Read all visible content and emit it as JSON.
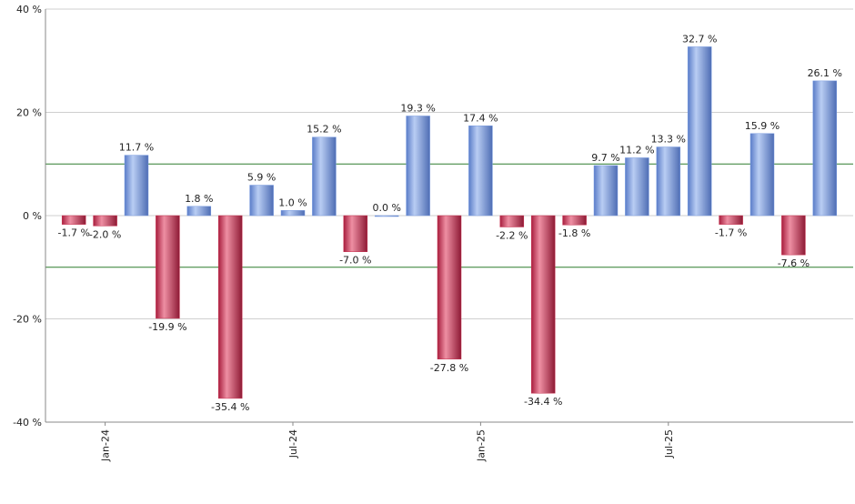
{
  "chart_data": {
    "type": "bar",
    "categories": [
      null,
      "Jan-24",
      null,
      null,
      null,
      null,
      null,
      "Jul-24",
      null,
      null,
      null,
      null,
      null,
      "Jan-25",
      null,
      null,
      null,
      null,
      null,
      "Jul-25",
      null,
      null,
      null,
      null,
      null
    ],
    "values": [
      -1.7,
      -2.0,
      11.7,
      -19.9,
      1.8,
      -35.4,
      5.9,
      1.0,
      15.2,
      -7.0,
      0.0,
      19.3,
      -27.8,
      17.4,
      -2.2,
      -34.4,
      -1.8,
      9.7,
      11.2,
      13.3,
      32.7,
      -1.7,
      15.9,
      -7.6,
      26.1
    ],
    "value_labels": [
      "-1.7 %",
      "-2.0 %",
      "11.7 %",
      "-19.9 %",
      "1.8 %",
      "-35.4 %",
      "5.9 %",
      "1.0 %",
      "15.2 %",
      "-7.0 %",
      "0.0 %",
      "19.3 %",
      "-27.8 %",
      "17.4 %",
      "-2.2 %",
      "-34.4 %",
      "-1.8 %",
      "9.7 %",
      "11.2 %",
      "13.3 %",
      "32.7 %",
      "-1.7 %",
      "15.9 %",
      "-7.6 %",
      "26.1 %"
    ],
    "positive_color": "#7b9de0",
    "negative_color": "#c8304f",
    "ylim": [
      -40,
      40
    ],
    "yticks": [
      {
        "value": -40,
        "label": "-40 %"
      },
      {
        "value": -20,
        "label": "-20 %"
      },
      {
        "value": 0,
        "label": "0 %"
      },
      {
        "value": 20,
        "label": "20 %"
      },
      {
        "value": 40,
        "label": "40 %"
      }
    ],
    "grid": true,
    "reference_lines": [
      10,
      -10
    ],
    "reference_color": "#2e7d2e"
  }
}
